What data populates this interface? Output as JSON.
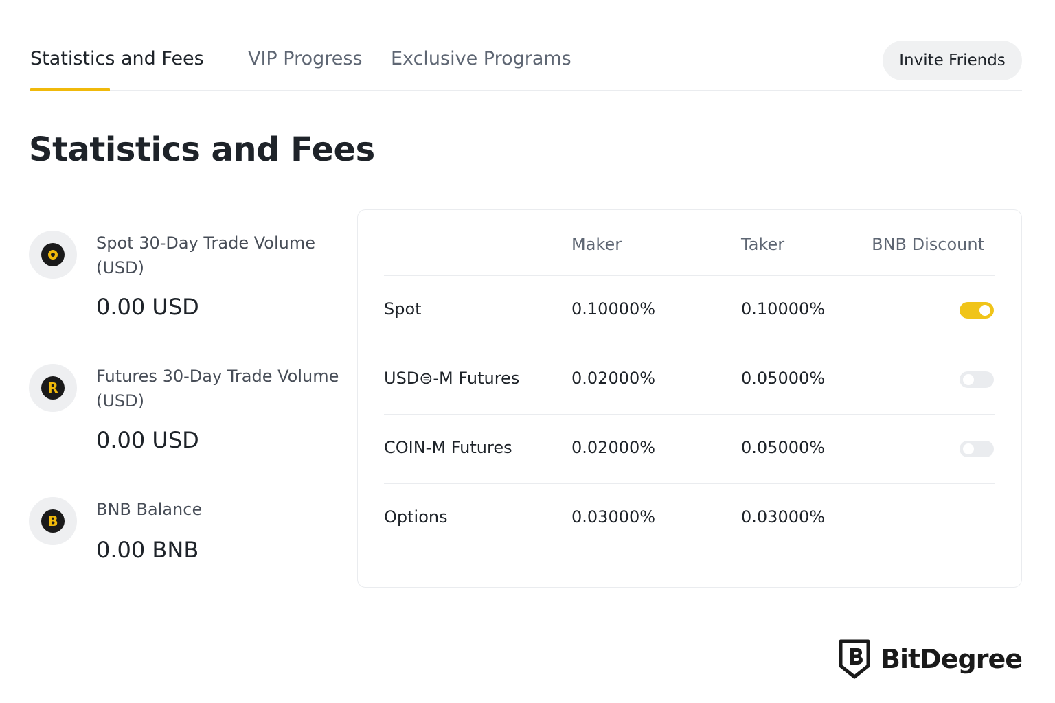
{
  "tabs": [
    {
      "label": "Statistics and Fees",
      "active": true
    },
    {
      "label": "VIP Progress",
      "active": false
    },
    {
      "label": "Exclusive Programs",
      "active": false
    }
  ],
  "invite_button": "Invite Friends",
  "page_title": "Statistics and Fees",
  "stats": [
    {
      "icon": "spot-coin-icon",
      "label": "Spot 30-Day Trade Volume (USD)",
      "value": "0.00 USD"
    },
    {
      "icon": "futures-coin-icon",
      "label": "Futures 30-Day Trade Volume (USD)",
      "value": "0.00 USD",
      "icon_letter": "R"
    },
    {
      "icon": "bnb-coin-icon",
      "label": "BNB Balance",
      "value": "0.00 BNB",
      "icon_letter": "B"
    }
  ],
  "fee_table": {
    "headers": {
      "maker": "Maker",
      "taker": "Taker",
      "discount": "BNB Discount"
    },
    "rows": [
      {
        "name": "Spot",
        "maker": "0.10000%",
        "taker": "0.10000%",
        "bnb_discount": "on"
      },
      {
        "name": "USD⊜-M Futures",
        "maker": "0.02000%",
        "taker": "0.05000%",
        "bnb_discount": "off"
      },
      {
        "name": "COIN-M Futures",
        "maker": "0.02000%",
        "taker": "0.05000%",
        "bnb_discount": "off"
      },
      {
        "name": "Options",
        "maker": "0.03000%",
        "taker": "0.03000%",
        "bnb_discount": "none"
      }
    ]
  },
  "brand": {
    "name": "BitDegree",
    "icon": "bitdegree-logo-icon"
  },
  "colors": {
    "accent": "#f0b90b",
    "text": "#1e2329",
    "muted": "#5e6673",
    "divider": "#eaecef"
  }
}
